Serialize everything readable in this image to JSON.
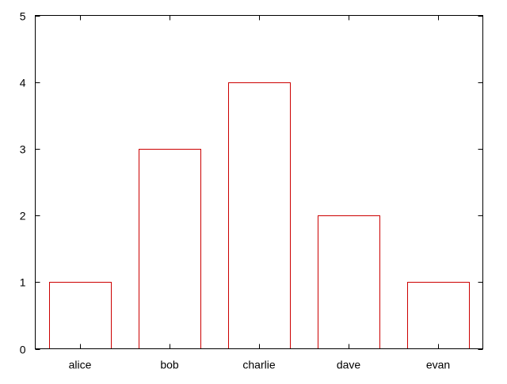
{
  "chart_data": {
    "type": "bar",
    "categories": [
      "alice",
      "bob",
      "charlie",
      "dave",
      "evan"
    ],
    "values": [
      1,
      3,
      4,
      2,
      1
    ],
    "title": "",
    "xlabel": "",
    "ylabel": "",
    "ylim": [
      0,
      5
    ],
    "yticks": [
      0,
      1,
      2,
      3,
      4,
      5
    ],
    "grid": false,
    "legend": "none",
    "bar_style": "outline",
    "colors": {
      "bar_stroke": "#cc0000",
      "bar_fill": "none",
      "axis": "#000000",
      "background": "#ffffff"
    }
  }
}
